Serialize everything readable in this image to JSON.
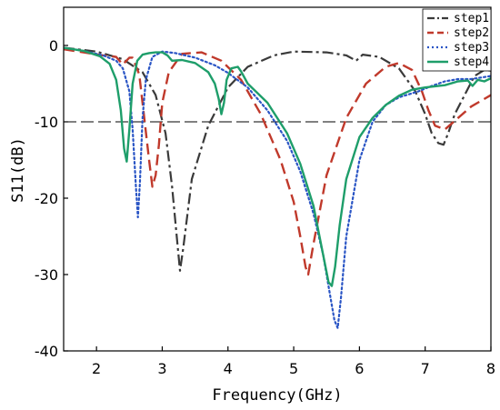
{
  "chart_data": {
    "type": "line",
    "xlabel": "Frequency(GHz)",
    "ylabel": "S11(dB)",
    "xlim": [
      1.5,
      8
    ],
    "ylim": [
      -40,
      5
    ],
    "xticks": [
      2,
      3,
      4,
      5,
      6,
      7,
      8
    ],
    "xtick_labels": [
      "2",
      "3",
      "4",
      "5",
      "6",
      "7",
      "8"
    ],
    "yticks": [
      0,
      -10,
      -20,
      -30,
      -40
    ],
    "ytick_labels": [
      "0",
      "-10",
      "-20",
      "-30",
      "-40"
    ],
    "grid": false,
    "legend_position": "top-right",
    "reference_line": {
      "y": -10,
      "style": "dashed",
      "color": "#000000"
    },
    "series": [
      {
        "name": "step1",
        "color": "#3a3a3a",
        "dash": "dashdot",
        "x": [
          1.5,
          2.0,
          2.4,
          2.7,
          2.9,
          3.05,
          3.15,
          3.22,
          3.27,
          3.32,
          3.45,
          3.7,
          4.0,
          4.3,
          4.7,
          5.0,
          5.5,
          5.8,
          5.95,
          6.05,
          6.3,
          6.6,
          6.85,
          7.0,
          7.1,
          7.2,
          7.28,
          7.35,
          7.45,
          7.6,
          7.75,
          7.9,
          8.0
        ],
        "y": [
          -0.3,
          -0.8,
          -1.8,
          -3.5,
          -6.5,
          -11.5,
          -18.5,
          -25.0,
          -29.5,
          -26.5,
          -17.5,
          -10.5,
          -5.5,
          -2.8,
          -1.3,
          -0.8,
          -0.9,
          -1.3,
          -2.0,
          -1.2,
          -1.5,
          -3.0,
          -6.0,
          -9.0,
          -11.5,
          -12.8,
          -13.0,
          -11.5,
          -9.0,
          -6.5,
          -4.0,
          -3.2,
          -3.3
        ]
      },
      {
        "name": "step2",
        "color": "#c0392b",
        "dash": "dashed",
        "x": [
          1.5,
          1.8,
          2.1,
          2.3,
          2.4,
          2.5,
          2.55,
          2.65,
          2.8,
          2.85,
          2.9,
          2.95,
          3.0,
          3.1,
          3.3,
          3.6,
          3.9,
          4.2,
          4.5,
          4.8,
          5.0,
          5.1,
          5.18,
          5.22,
          5.3,
          5.5,
          5.8,
          6.1,
          6.4,
          6.6,
          6.8,
          6.95,
          7.05,
          7.15,
          7.3,
          7.5,
          7.7,
          8.0
        ],
        "y": [
          -0.5,
          -0.9,
          -1.3,
          -1.5,
          -2.5,
          -1.6,
          -1.6,
          -3.8,
          -15.0,
          -18.5,
          -17.0,
          -13.0,
          -7.5,
          -3.5,
          -1.1,
          -0.9,
          -2.0,
          -4.5,
          -9.0,
          -15.0,
          -20.5,
          -25.0,
          -29.0,
          -30.0,
          -26.0,
          -17.0,
          -9.5,
          -5.0,
          -2.8,
          -2.3,
          -3.2,
          -6.0,
          -8.5,
          -10.5,
          -11.0,
          -9.5,
          -8.0,
          -6.5
        ]
      },
      {
        "name": "step3",
        "color": "#2a55c5",
        "dash": "dotted",
        "x": [
          1.5,
          1.8,
          2.1,
          2.3,
          2.4,
          2.5,
          2.55,
          2.6,
          2.63,
          2.66,
          2.7,
          2.75,
          2.85,
          3.0,
          3.2,
          3.5,
          3.8,
          4.0,
          4.3,
          4.6,
          4.9,
          5.1,
          5.3,
          5.45,
          5.55,
          5.62,
          5.67,
          5.72,
          5.8,
          6.0,
          6.2,
          6.4,
          6.6,
          6.9,
          7.1,
          7.3,
          7.5,
          7.7,
          8.0
        ],
        "y": [
          -0.3,
          -0.7,
          -1.3,
          -2.0,
          -3.0,
          -6.0,
          -11.0,
          -18.5,
          -22.5,
          -18.0,
          -9.5,
          -4.5,
          -1.5,
          -0.8,
          -1.0,
          -1.6,
          -2.6,
          -3.6,
          -5.5,
          -8.5,
          -12.5,
          -16.5,
          -22.0,
          -27.5,
          -32.5,
          -36.0,
          -37.0,
          -33.0,
          -25.0,
          -15.0,
          -10.0,
          -7.8,
          -6.8,
          -6.0,
          -5.3,
          -4.7,
          -4.4,
          -4.4,
          -4.0
        ]
      },
      {
        "name": "step4",
        "color": "#1e9e6a",
        "dash": "solid",
        "x": [
          1.5,
          1.8,
          2.05,
          2.2,
          2.3,
          2.37,
          2.42,
          2.46,
          2.5,
          2.55,
          2.62,
          2.7,
          2.8,
          2.9,
          3.0,
          3.08,
          3.15,
          3.3,
          3.5,
          3.7,
          3.8,
          3.86,
          3.9,
          3.94,
          3.98,
          4.05,
          4.15,
          4.2,
          4.3,
          4.6,
          4.9,
          5.1,
          5.3,
          5.45,
          5.53,
          5.58,
          5.63,
          5.7,
          5.8,
          6.0,
          6.2,
          6.4,
          6.6,
          6.8,
          7.0,
          7.3,
          7.5,
          7.65,
          7.72,
          7.8,
          7.9,
          8.0
        ],
        "y": [
          -0.3,
          -0.7,
          -1.4,
          -2.4,
          -4.5,
          -8.5,
          -13.5,
          -15.2,
          -11.0,
          -5.0,
          -2.0,
          -1.2,
          -1.0,
          -0.9,
          -0.9,
          -1.3,
          -2.0,
          -1.9,
          -2.3,
          -3.5,
          -5.0,
          -7.0,
          -9.0,
          -7.5,
          -4.5,
          -3.0,
          -2.8,
          -3.4,
          -5.0,
          -7.5,
          -11.5,
          -15.5,
          -21.0,
          -27.5,
          -31.0,
          -31.5,
          -29.0,
          -23.5,
          -17.5,
          -12.0,
          -9.5,
          -7.8,
          -6.6,
          -5.8,
          -5.5,
          -5.2,
          -4.7,
          -4.6,
          -5.3,
          -4.5,
          -4.7,
          -4.3
        ]
      }
    ]
  }
}
